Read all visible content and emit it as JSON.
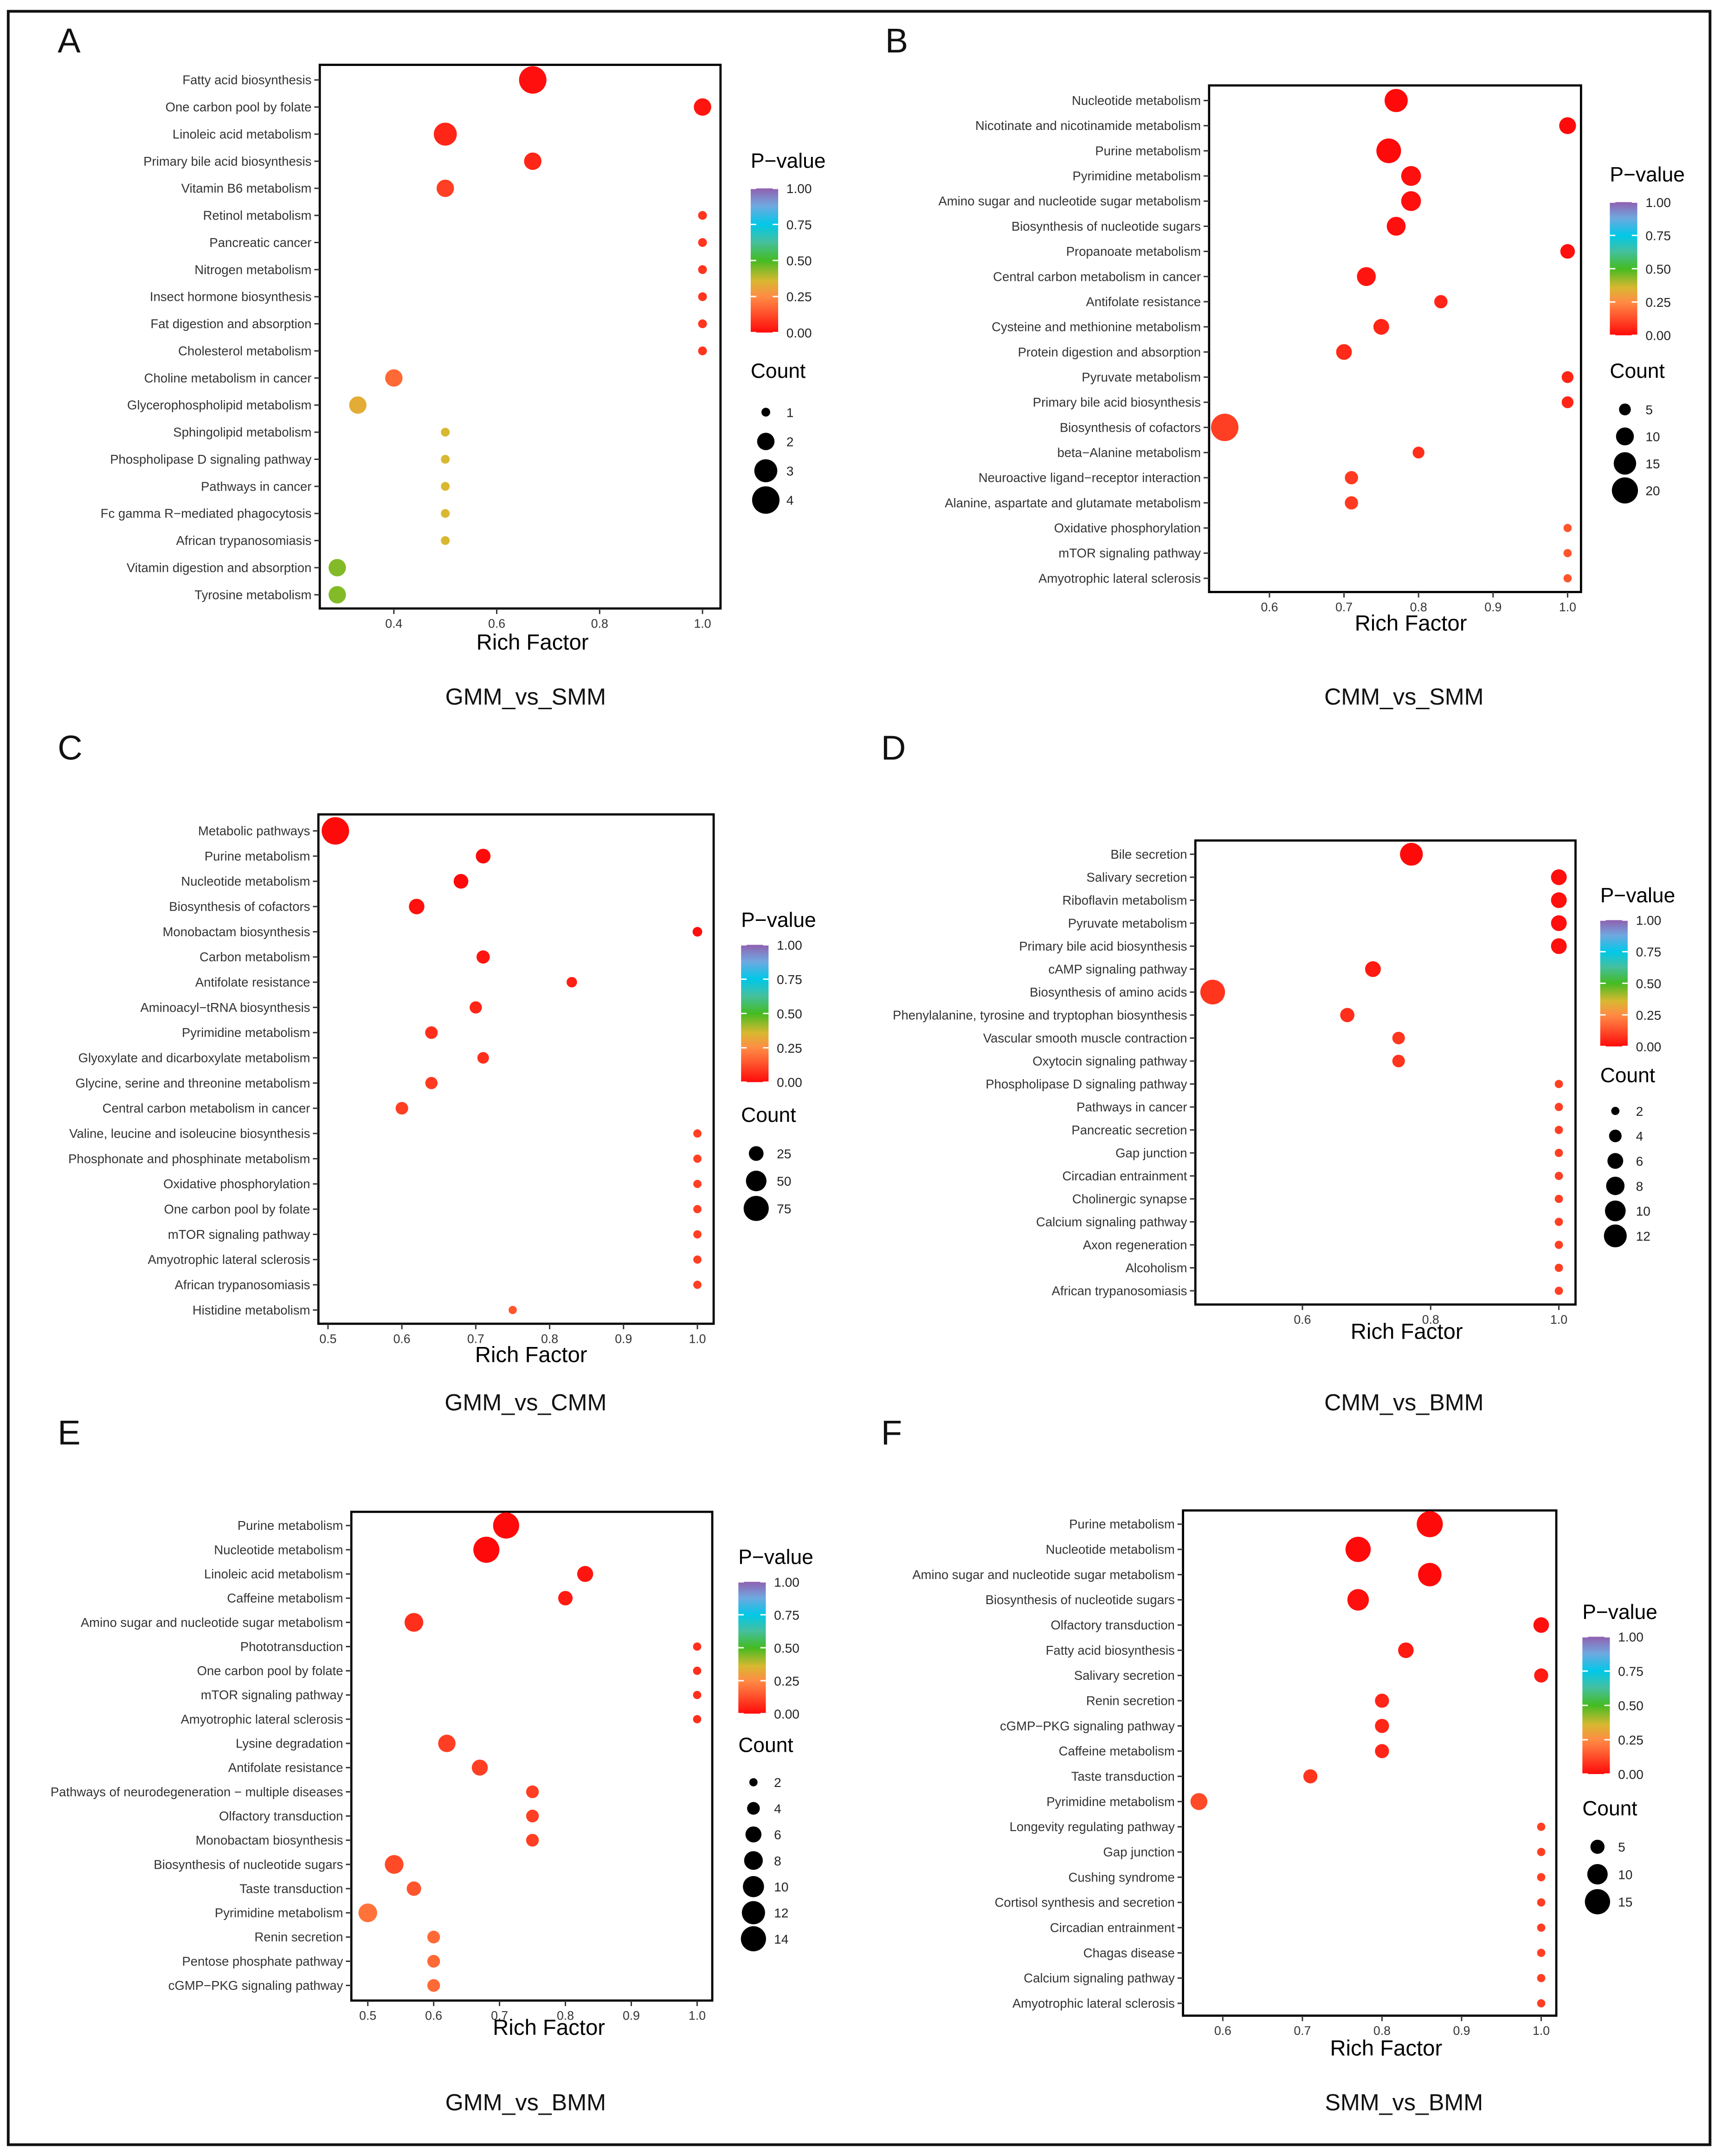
{
  "chart_data": [
    {
      "type": "scatter",
      "letter": "A",
      "subtitle": "GMM_vs_SMM",
      "xlabel": "Rich Factor",
      "xticks": [
        0.4,
        0.6,
        0.8,
        1.0
      ],
      "xlim": [
        0.256,
        1.035
      ],
      "pvalue_title": "P−value",
      "pvalue_ticks": [
        "1.00",
        "0.75",
        "0.50",
        "0.25",
        "0.00"
      ],
      "count_title": "Count",
      "count_breaks": [
        1,
        2,
        3,
        4
      ],
      "pathways": [
        {
          "name": "Fatty acid biosynthesis",
          "rich": 0.67,
          "count": 4,
          "p": 0.01
        },
        {
          "name": "One carbon pool by folate",
          "rich": 1.0,
          "count": 2,
          "p": 0.02
        },
        {
          "name": "Linoleic acid metabolism",
          "rich": 0.5,
          "count": 3,
          "p": 0.05
        },
        {
          "name": "Primary bile acid biosynthesis",
          "rich": 0.67,
          "count": 2,
          "p": 0.05
        },
        {
          "name": "Vitamin B6 metabolism",
          "rich": 0.5,
          "count": 2,
          "p": 0.1
        },
        {
          "name": "Retinol metabolism",
          "rich": 1.0,
          "count": 1,
          "p": 0.08
        },
        {
          "name": "Pancreatic cancer",
          "rich": 1.0,
          "count": 1,
          "p": 0.08
        },
        {
          "name": "Nitrogen metabolism",
          "rich": 1.0,
          "count": 1,
          "p": 0.08
        },
        {
          "name": "Insect hormone biosynthesis",
          "rich": 1.0,
          "count": 1,
          "p": 0.08
        },
        {
          "name": "Fat digestion and absorption",
          "rich": 1.0,
          "count": 1,
          "p": 0.08
        },
        {
          "name": "Cholesterol metabolism",
          "rich": 1.0,
          "count": 1,
          "p": 0.08
        },
        {
          "name": "Choline metabolism in cancer",
          "rich": 0.4,
          "count": 2,
          "p": 0.18
        },
        {
          "name": "Glycerophospholipid metabolism",
          "rich": 0.33,
          "count": 2,
          "p": 0.33
        },
        {
          "name": "Sphingolipid metabolism",
          "rich": 0.5,
          "count": 1,
          "p": 0.36
        },
        {
          "name": "Phospholipase D signaling pathway",
          "rich": 0.5,
          "count": 1,
          "p": 0.36
        },
        {
          "name": "Pathways in cancer",
          "rich": 0.5,
          "count": 1,
          "p": 0.36
        },
        {
          "name": "Fc gamma R−mediated phagocytosis",
          "rich": 0.5,
          "count": 1,
          "p": 0.36
        },
        {
          "name": "African trypanosomiasis",
          "rich": 0.5,
          "count": 1,
          "p": 0.36
        },
        {
          "name": "Vitamin digestion and absorption",
          "rich": 0.29,
          "count": 2,
          "p": 0.44
        },
        {
          "name": "Tyrosine metabolism",
          "rich": 0.29,
          "count": 2,
          "p": 0.44
        }
      ]
    },
    {
      "type": "scatter",
      "letter": "B",
      "subtitle": "CMM_vs_SMM",
      "xlabel": "Rich Factor",
      "xticks": [
        0.6,
        0.7,
        0.8,
        0.9,
        1.0
      ],
      "xlim": [
        0.519,
        1.018
      ],
      "pvalue_title": "P−value",
      "pvalue_ticks": [
        "1.00",
        "0.75",
        "0.50",
        "0.25",
        "0.00"
      ],
      "count_title": "Count",
      "count_breaks": [
        5,
        10,
        15,
        20
      ],
      "pathways": [
        {
          "name": "Nucleotide metabolism",
          "rich": 0.77,
          "count": 16,
          "p": 0.0
        },
        {
          "name": "Nicotinate and nicotinamide metabolism",
          "rich": 1.0,
          "count": 9,
          "p": 0.0
        },
        {
          "name": "Purine metabolism",
          "rich": 0.76,
          "count": 18,
          "p": 0.0
        },
        {
          "name": "Pyrimidine metabolism",
          "rich": 0.79,
          "count": 12,
          "p": 0.01
        },
        {
          "name": "Amino sugar and nucleotide sugar metabolism",
          "rich": 0.79,
          "count": 12,
          "p": 0.01
        },
        {
          "name": "Biosynthesis of nucleotide sugars",
          "rich": 0.77,
          "count": 11,
          "p": 0.01
        },
        {
          "name": "Propanoate metabolism",
          "rich": 1.0,
          "count": 7,
          "p": 0.01
        },
        {
          "name": "Central carbon metabolism in cancer",
          "rich": 0.73,
          "count": 11,
          "p": 0.02
        },
        {
          "name": "Antifolate resistance",
          "rich": 0.83,
          "count": 6,
          "p": 0.05
        },
        {
          "name": "Cysteine and methionine metabolism",
          "rich": 0.75,
          "count": 8,
          "p": 0.05
        },
        {
          "name": "Protein digestion and absorption",
          "rich": 0.7,
          "count": 8,
          "p": 0.06
        },
        {
          "name": "Pyruvate metabolism",
          "rich": 1.0,
          "count": 5,
          "p": 0.05
        },
        {
          "name": "Primary bile acid biosynthesis",
          "rich": 1.0,
          "count": 5,
          "p": 0.05
        },
        {
          "name": "Biosynthesis of cofactors",
          "rich": 0.54,
          "count": 22,
          "p": 0.1
        },
        {
          "name": "beta−Alanine metabolism",
          "rich": 0.8,
          "count": 5,
          "p": 0.07
        },
        {
          "name": "Neuroactive ligand−receptor interaction",
          "rich": 0.71,
          "count": 6,
          "p": 0.09
        },
        {
          "name": "Alanine, aspartate and glutamate metabolism",
          "rich": 0.71,
          "count": 6,
          "p": 0.09
        },
        {
          "name": "Oxidative phosphorylation",
          "rich": 1.0,
          "count": 3,
          "p": 0.14
        },
        {
          "name": "mTOR signaling pathway",
          "rich": 1.0,
          "count": 3,
          "p": 0.14
        },
        {
          "name": "Amyotrophic lateral sclerosis",
          "rich": 1.0,
          "count": 3,
          "p": 0.14
        }
      ]
    },
    {
      "type": "scatter",
      "letter": "C",
      "subtitle": "GMM_vs_CMM",
      "xlabel": "Rich Factor",
      "xticks": [
        0.5,
        0.6,
        0.7,
        0.8,
        0.9,
        1.0
      ],
      "xlim": [
        0.487,
        1.022
      ],
      "pvalue_title": "P−value",
      "pvalue_ticks": [
        "1.00",
        "0.75",
        "0.50",
        "0.25",
        "0.00"
      ],
      "count_title": "Count",
      "count_breaks": [
        25,
        50,
        75
      ],
      "pathways": [
        {
          "name": "Metabolic pathways",
          "rich": 0.51,
          "count": 90,
          "p": 0.0
        },
        {
          "name": "Purine metabolism",
          "rich": 0.71,
          "count": 25,
          "p": 0.0
        },
        {
          "name": "Nucleotide metabolism",
          "rich": 0.68,
          "count": 25,
          "p": 0.0
        },
        {
          "name": "Biosynthesis of cofactors",
          "rich": 0.62,
          "count": 28,
          "p": 0.01
        },
        {
          "name": "Monobactam biosynthesis",
          "rich": 1.0,
          "count": 10,
          "p": 0.01
        },
        {
          "name": "Carbon metabolism",
          "rich": 0.71,
          "count": 20,
          "p": 0.02
        },
        {
          "name": "Antifolate resistance",
          "rich": 0.83,
          "count": 12,
          "p": 0.04
        },
        {
          "name": "Aminoacyl−tRNA biosynthesis",
          "rich": 0.7,
          "count": 17,
          "p": 0.05
        },
        {
          "name": "Pyrimidine metabolism",
          "rich": 0.64,
          "count": 18,
          "p": 0.07
        },
        {
          "name": "Glyoxylate and dicarboxylate metabolism",
          "rich": 0.71,
          "count": 15,
          "p": 0.07
        },
        {
          "name": "Glycine, serine and threonine metabolism",
          "rich": 0.64,
          "count": 17,
          "p": 0.09
        },
        {
          "name": "Central carbon metabolism in cancer",
          "rich": 0.6,
          "count": 18,
          "p": 0.1
        },
        {
          "name": "Valine, leucine and isoleucine biosynthesis",
          "rich": 1.0,
          "count": 7,
          "p": 0.1
        },
        {
          "name": "Phosphonate and phosphinate metabolism",
          "rich": 1.0,
          "count": 7,
          "p": 0.1
        },
        {
          "name": "Oxidative phosphorylation",
          "rich": 1.0,
          "count": 7,
          "p": 0.1
        },
        {
          "name": "One carbon pool by folate",
          "rich": 1.0,
          "count": 7,
          "p": 0.1
        },
        {
          "name": "mTOR signaling pathway",
          "rich": 1.0,
          "count": 7,
          "p": 0.1
        },
        {
          "name": "Amyotrophic lateral sclerosis",
          "rich": 1.0,
          "count": 7,
          "p": 0.1
        },
        {
          "name": "African trypanosomiasis",
          "rich": 1.0,
          "count": 7,
          "p": 0.1
        },
        {
          "name": "Histidine metabolism",
          "rich": 0.75,
          "count": 7,
          "p": 0.14
        }
      ]
    },
    {
      "type": "scatter",
      "letter": "D",
      "subtitle": "CMM_vs_BMM",
      "xlabel": "Rich Factor",
      "xticks": [
        0.6,
        0.8,
        1.0
      ],
      "xlim": [
        0.433,
        1.026
      ],
      "pvalue_title": "P−value",
      "pvalue_ticks": [
        "1.00",
        "0.75",
        "0.50",
        "0.25",
        "0.00"
      ],
      "count_title": "Count",
      "count_breaks": [
        2,
        4,
        6,
        8,
        10,
        12
      ],
      "pathways": [
        {
          "name": "Bile secretion",
          "rich": 0.77,
          "count": 12,
          "p": 0.0
        },
        {
          "name": "Salivary secretion",
          "rich": 1.0,
          "count": 6,
          "p": 0.01
        },
        {
          "name": "Riboflavin metabolism",
          "rich": 1.0,
          "count": 6,
          "p": 0.01
        },
        {
          "name": "Pyruvate metabolism",
          "rich": 1.0,
          "count": 6,
          "p": 0.01
        },
        {
          "name": "Primary bile acid biosynthesis",
          "rich": 1.0,
          "count": 6,
          "p": 0.01
        },
        {
          "name": "cAMP signaling pathway",
          "rich": 0.71,
          "count": 6,
          "p": 0.03
        },
        {
          "name": "Biosynthesis of amino acids",
          "rich": 0.46,
          "count": 14,
          "p": 0.08
        },
        {
          "name": "Phenylalanine, tyrosine and tryptophan biosynthesis",
          "rich": 0.67,
          "count": 5,
          "p": 0.07
        },
        {
          "name": "Vascular smooth muscle contraction",
          "rich": 0.75,
          "count": 4,
          "p": 0.08
        },
        {
          "name": "Oxytocin signaling pathway",
          "rich": 0.75,
          "count": 4,
          "p": 0.08
        },
        {
          "name": "Phospholipase D signaling pathway",
          "rich": 1.0,
          "count": 2,
          "p": 0.1
        },
        {
          "name": "Pathways in cancer",
          "rich": 1.0,
          "count": 2,
          "p": 0.1
        },
        {
          "name": "Pancreatic secretion",
          "rich": 1.0,
          "count": 2,
          "p": 0.1
        },
        {
          "name": "Gap junction",
          "rich": 1.0,
          "count": 2,
          "p": 0.1
        },
        {
          "name": "Circadian entrainment",
          "rich": 1.0,
          "count": 2,
          "p": 0.1
        },
        {
          "name": "Cholinergic synapse",
          "rich": 1.0,
          "count": 2,
          "p": 0.1
        },
        {
          "name": "Calcium signaling pathway",
          "rich": 1.0,
          "count": 2,
          "p": 0.1
        },
        {
          "name": "Axon regeneration",
          "rich": 1.0,
          "count": 2,
          "p": 0.1
        },
        {
          "name": "Alcoholism",
          "rich": 1.0,
          "count": 2,
          "p": 0.1
        },
        {
          "name": "African trypanosomiasis",
          "rich": 1.0,
          "count": 2,
          "p": 0.1
        }
      ]
    },
    {
      "type": "scatter",
      "letter": "E",
      "subtitle": "GMM_vs_BMM",
      "xlabel": "Rich Factor",
      "xticks": [
        0.5,
        0.6,
        0.7,
        0.8,
        0.9,
        1.0
      ],
      "xlim": [
        0.475,
        1.023
      ],
      "pvalue_title": "P−value",
      "pvalue_ticks": [
        "1.00",
        "0.75",
        "0.50",
        "0.25",
        "0.00"
      ],
      "count_title": "Count",
      "count_breaks": [
        2,
        4,
        6,
        8,
        10,
        12,
        14
      ],
      "pathways": [
        {
          "name": "Purine metabolism",
          "rich": 0.71,
          "count": 15,
          "p": 0.0
        },
        {
          "name": "Nucleotide metabolism",
          "rich": 0.68,
          "count": 15,
          "p": 0.0
        },
        {
          "name": "Linoleic acid metabolism",
          "rich": 0.83,
          "count": 6,
          "p": 0.02
        },
        {
          "name": "Caffeine metabolism",
          "rich": 0.8,
          "count": 5,
          "p": 0.03
        },
        {
          "name": "Amino sugar and nucleotide sugar metabolism",
          "rich": 0.57,
          "count": 8,
          "p": 0.07
        },
        {
          "name": "Phototransduction",
          "rich": 1.0,
          "count": 2,
          "p": 0.07
        },
        {
          "name": "One carbon pool by folate",
          "rich": 1.0,
          "count": 2,
          "p": 0.07
        },
        {
          "name": "mTOR signaling pathway",
          "rich": 1.0,
          "count": 2,
          "p": 0.07
        },
        {
          "name": "Amyotrophic lateral sclerosis",
          "rich": 1.0,
          "count": 2,
          "p": 0.07
        },
        {
          "name": "Lysine degradation",
          "rich": 0.62,
          "count": 7,
          "p": 0.1
        },
        {
          "name": "Antifolate resistance",
          "rich": 0.67,
          "count": 6,
          "p": 0.1
        },
        {
          "name": "Pathways of neurodegeneration − multiple diseases",
          "rich": 0.75,
          "count": 4,
          "p": 0.1
        },
        {
          "name": "Olfactory transduction",
          "rich": 0.75,
          "count": 4,
          "p": 0.1
        },
        {
          "name": "Monobactam biosynthesis",
          "rich": 0.75,
          "count": 4,
          "p": 0.1
        },
        {
          "name": "Biosynthesis of nucleotide sugars",
          "rich": 0.54,
          "count": 8,
          "p": 0.12
        },
        {
          "name": "Taste transduction",
          "rich": 0.57,
          "count": 5,
          "p": 0.14
        },
        {
          "name": "Pyrimidine metabolism",
          "rich": 0.5,
          "count": 8,
          "p": 0.2
        },
        {
          "name": "Renin secretion",
          "rich": 0.6,
          "count": 4,
          "p": 0.18
        },
        {
          "name": "Pentose phosphate pathway",
          "rich": 0.6,
          "count": 4,
          "p": 0.18
        },
        {
          "name": "cGMP−PKG signaling pathway",
          "rich": 0.6,
          "count": 4,
          "p": 0.18
        }
      ]
    },
    {
      "type": "scatter",
      "letter": "F",
      "subtitle": "SMM_vs_BMM",
      "xlabel": "Rich Factor",
      "xticks": [
        0.6,
        0.7,
        0.8,
        0.9,
        1.0
      ],
      "xlim": [
        0.55,
        1.019
      ],
      "pvalue_title": "P−value",
      "pvalue_ticks": [
        "1.00",
        "0.75",
        "0.50",
        "0.25",
        "0.00"
      ],
      "count_title": "Count",
      "count_breaks": [
        5,
        10,
        15
      ],
      "pathways": [
        {
          "name": "Purine metabolism",
          "rich": 0.86,
          "count": 16,
          "p": 0.0
        },
        {
          "name": "Nucleotide metabolism",
          "rich": 0.77,
          "count": 15,
          "p": 0.0
        },
        {
          "name": "Amino sugar and nucleotide sugar metabolism",
          "rich": 0.86,
          "count": 13,
          "p": 0.0
        },
        {
          "name": "Biosynthesis of nucleotide sugars",
          "rich": 0.77,
          "count": 11,
          "p": 0.01
        },
        {
          "name": "Olfactory transduction",
          "rich": 1.0,
          "count": 6,
          "p": 0.01
        },
        {
          "name": "Fatty acid biosynthesis",
          "rich": 0.83,
          "count": 6,
          "p": 0.03
        },
        {
          "name": "Salivary secretion",
          "rich": 1.0,
          "count": 5,
          "p": 0.03
        },
        {
          "name": "Renin secretion",
          "rich": 0.8,
          "count": 5,
          "p": 0.05
        },
        {
          "name": "cGMP−PKG signaling pathway",
          "rich": 0.8,
          "count": 5,
          "p": 0.05
        },
        {
          "name": "Caffeine metabolism",
          "rich": 0.8,
          "count": 5,
          "p": 0.05
        },
        {
          "name": "Taste transduction",
          "rich": 0.71,
          "count": 5,
          "p": 0.08
        },
        {
          "name": "Pyrimidine metabolism",
          "rich": 0.57,
          "count": 7,
          "p": 0.12
        },
        {
          "name": "Longevity regulating pathway",
          "rich": 1.0,
          "count": 2,
          "p": 0.1
        },
        {
          "name": "Gap junction",
          "rich": 1.0,
          "count": 2,
          "p": 0.1
        },
        {
          "name": "Cushing syndrome",
          "rich": 1.0,
          "count": 2,
          "p": 0.1
        },
        {
          "name": "Cortisol synthesis and secretion",
          "rich": 1.0,
          "count": 2,
          "p": 0.1
        },
        {
          "name": "Circadian entrainment",
          "rich": 1.0,
          "count": 2,
          "p": 0.1
        },
        {
          "name": "Chagas disease",
          "rich": 1.0,
          "count": 2,
          "p": 0.1
        },
        {
          "name": "Calcium signaling pathway",
          "rich": 1.0,
          "count": 2,
          "p": 0.1
        },
        {
          "name": "Amyotrophic lateral sclerosis",
          "rich": 1.0,
          "count": 2,
          "p": 0.1
        }
      ]
    }
  ]
}
